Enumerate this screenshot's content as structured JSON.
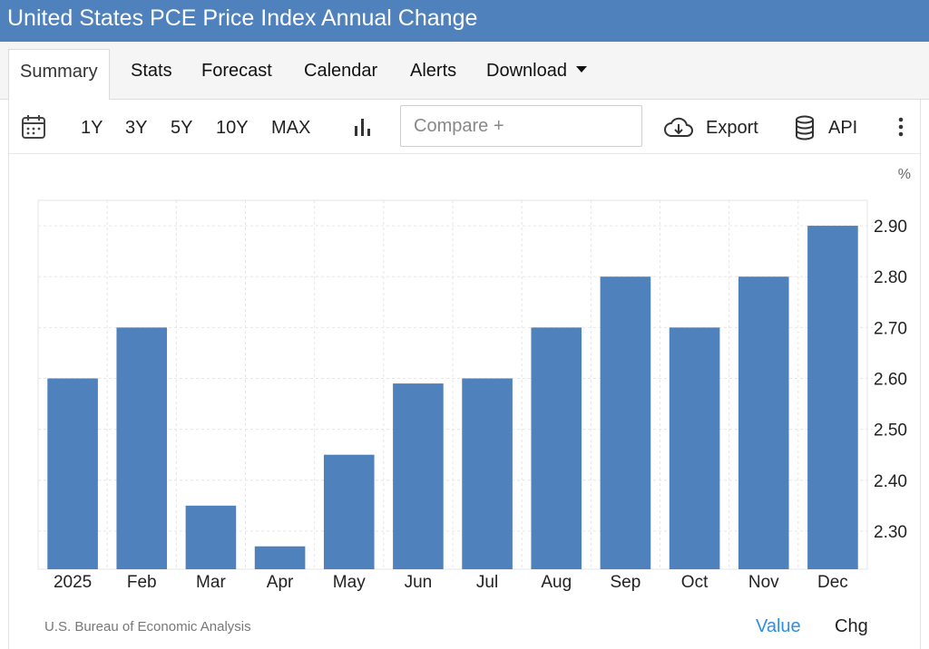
{
  "title": "United States PCE Price Index Annual Change",
  "tabs": [
    {
      "label": "Summary"
    },
    {
      "label": "Stats"
    },
    {
      "label": "Forecast"
    },
    {
      "label": "Calendar"
    },
    {
      "label": "Alerts"
    },
    {
      "label": "Download"
    }
  ],
  "toolbar": {
    "ranges": [
      "1Y",
      "3Y",
      "5Y",
      "10Y",
      "MAX"
    ],
    "compare_placeholder": "Compare +",
    "export_label": "Export",
    "api_label": "API"
  },
  "source": "U.S. Bureau of Economic Analysis",
  "view_toggle": {
    "value_label": "Value",
    "chg_label": "Chg"
  },
  "colors": {
    "bar": "#4f81bd",
    "header": "#4f81bd",
    "active_toggle": "#2f8de4"
  },
  "chart_data": {
    "type": "bar",
    "unit": "%",
    "categories": [
      "2025",
      "Feb",
      "Mar",
      "Apr",
      "May",
      "Jun",
      "Jul",
      "Aug",
      "Sep",
      "Oct",
      "Nov",
      "Dec"
    ],
    "values": [
      2.6,
      2.7,
      2.35,
      2.27,
      2.45,
      2.59,
      2.6,
      2.7,
      2.8,
      2.7,
      2.8,
      2.9
    ],
    "y_ticks": [
      "2.30",
      "2.40",
      "2.50",
      "2.60",
      "2.70",
      "2.80",
      "2.90"
    ],
    "ylim": [
      2.225,
      2.95
    ],
    "y_axis_position": "right",
    "grid": true
  }
}
